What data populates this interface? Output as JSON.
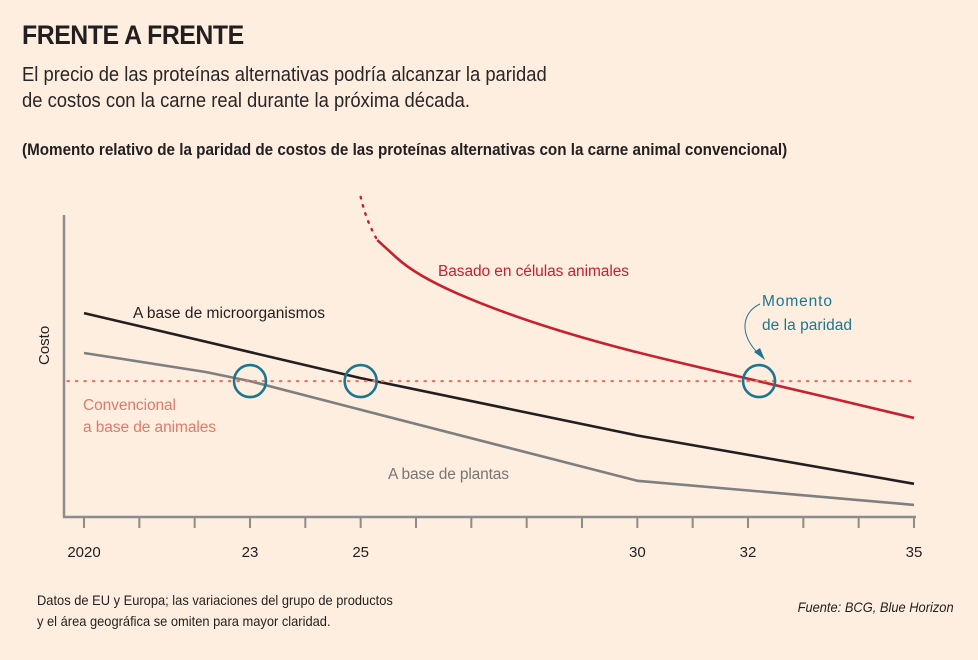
{
  "header": {
    "title": "FRENTE A FRENTE",
    "subtitle_lines": [
      "El precio de las proteínas alternativas podría alcanzar la paridad",
      "de costos con la carne real durante la próxima década."
    ],
    "chart_title": "(Momento relativo de la paridad de costos de las proteínas alternativas con la carne animal convencional)"
  },
  "footer": {
    "note_lines": [
      "Datos de EU y Europa; las variaciones del grupo de productos",
      "y el área geográfica se omiten para mayor claridad."
    ],
    "source": "Fuente: BCG, Blue Horizon"
  },
  "colors": {
    "background": "#fdeee0",
    "microorganisms": "#231f20",
    "plants": "#7f7f7f",
    "cells": "#c8202f",
    "conventional": "#e07a6a",
    "parity_marker": "#1d7690",
    "axis": "#8c8c8c"
  },
  "chart_data": {
    "type": "line",
    "title": "(Momento relativo de la paridad de costos de las proteínas alternativas con la carne animal convencional)",
    "xlabel": "",
    "ylabel": "Costo",
    "xlim": [
      2020,
      2035
    ],
    "ylim": [
      0,
      100
    ],
    "y_units": "relative cost (unscaled, estimated index)",
    "grid": false,
    "x_ticks": [
      2020,
      2021,
      2022,
      2023,
      2024,
      2025,
      2026,
      2027,
      2028,
      2029,
      2030,
      2031,
      2032,
      2033,
      2034,
      2035
    ],
    "x_tick_labels": [
      {
        "x": 2020,
        "label": "2020"
      },
      {
        "x": 2023,
        "label": "23"
      },
      {
        "x": 2025,
        "label": "25"
      },
      {
        "x": 2030,
        "label": "30"
      },
      {
        "x": 2032,
        "label": "32"
      },
      {
        "x": 2035,
        "label": "35"
      }
    ],
    "series": [
      {
        "name": "A base de microorganismos",
        "key": "microorganisms",
        "style": "solid",
        "points": [
          [
            2020,
            67.5
          ],
          [
            2025,
            46
          ],
          [
            2030,
            27
          ],
          [
            2035,
            11
          ]
        ]
      },
      {
        "name": "A base de plantas",
        "key": "plants",
        "style": "solid",
        "points": [
          [
            2020,
            54.3
          ],
          [
            2022.2,
            48
          ],
          [
            2023,
            45
          ],
          [
            2025,
            35.5
          ],
          [
            2030,
            12
          ],
          [
            2035,
            4
          ]
        ]
      },
      {
        "name": "Basado en células animales",
        "key": "cells",
        "style": "solid",
        "points": [
          [
            2025.3,
            91.7
          ],
          [
            2026,
            80
          ],
          [
            2027.5,
            68
          ],
          [
            2029.5,
            56.5
          ],
          [
            2032.2,
            45
          ],
          [
            2035,
            32.8
          ]
        ],
        "dotted_lead_in": [
          [
            2025,
            106
          ],
          [
            2025.1,
            98
          ],
          [
            2025.3,
            91.7
          ]
        ]
      },
      {
        "name": "Convencional a base de animales",
        "key": "conventional",
        "style": "dotted",
        "points": [
          [
            2019.7,
            45
          ],
          [
            2035,
            45
          ]
        ]
      }
    ],
    "parity_points": [
      {
        "series": "A base de plantas",
        "x": 2023
      },
      {
        "series": "A base de microorganismos",
        "x": 2025
      },
      {
        "series": "Basado en células animales",
        "x": 2032.2
      }
    ],
    "annotations": [
      {
        "text": "A base de microorganismos",
        "anchor": "above microorganisms line near 2021"
      },
      {
        "text": "A base de plantas",
        "anchor": "below plants line near 2026"
      },
      {
        "text": "Basado en células animales",
        "anchor": "right of cells curve near 2026"
      },
      {
        "text_lines": [
          "Convencional",
          "a base de animales"
        ],
        "anchor": "below conventional line at left"
      },
      {
        "text_lines": [
          "Momento",
          "de la paridad"
        ],
        "anchor": "above-right of cells parity point with curved arrow"
      }
    ],
    "parity_level": 45
  }
}
